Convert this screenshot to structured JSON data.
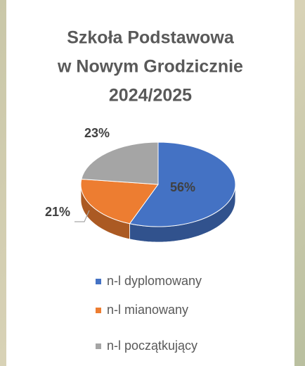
{
  "chart_data": {
    "type": "pie3d",
    "title": [
      "Szkoła Podstawowa",
      "w Nowym Grodzicznie",
      "2024/2025"
    ],
    "series": [
      {
        "name": "n-l dyplomowany",
        "color": "#4472c4",
        "values": [
          56
        ],
        "value_labels": [
          "56%"
        ]
      },
      {
        "name": "n-l mianowany",
        "color": "#ed7d31",
        "values": [
          21
        ],
        "value_labels": [
          "21%"
        ]
      },
      {
        "name": "n-l początkujący",
        "color": "#a5a5a5",
        "values": [
          23
        ],
        "value_labels": [
          "23%"
        ]
      }
    ],
    "legend": "bottom"
  }
}
